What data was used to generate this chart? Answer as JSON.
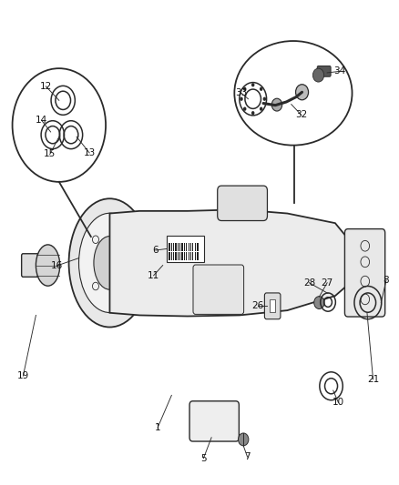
{
  "bg_color": "#ffffff",
  "line_color": "#2a2a2a",
  "label_color": "#111111",
  "label_fontsize": 7.5,
  "labels": [
    [
      1,
      0.395,
      0.118,
      0.43,
      0.185
    ],
    [
      5,
      0.51,
      0.055,
      0.53,
      0.098
    ],
    [
      6,
      0.39,
      0.484,
      0.418,
      0.487
    ],
    [
      7,
      0.62,
      0.058,
      0.61,
      0.081
    ],
    [
      8,
      0.968,
      0.422,
      0.955,
      0.376
    ],
    [
      10,
      0.848,
      0.17,
      0.835,
      0.195
    ],
    [
      11,
      0.385,
      0.432,
      0.408,
      0.453
    ],
    [
      12,
      0.115,
      0.822,
      0.148,
      0.793
    ],
    [
      13,
      0.224,
      0.685,
      0.192,
      0.718
    ],
    [
      14,
      0.104,
      0.752,
      0.127,
      0.728
    ],
    [
      15,
      0.125,
      0.682,
      0.148,
      0.718
    ],
    [
      16,
      0.142,
      0.452,
      0.198,
      0.468
    ],
    [
      19,
      0.058,
      0.225,
      0.09,
      0.35
    ],
    [
      21,
      0.935,
      0.218,
      0.92,
      0.355
    ],
    [
      26,
      0.645,
      0.37,
      0.668,
      0.37
    ],
    [
      27,
      0.82,
      0.417,
      0.8,
      0.388
    ],
    [
      28,
      0.775,
      0.417,
      0.822,
      0.395
    ],
    [
      32,
      0.755,
      0.763,
      0.73,
      0.785
    ],
    [
      33,
      0.605,
      0.808,
      0.622,
      0.796
    ],
    [
      34,
      0.852,
      0.853,
      0.82,
      0.85
    ]
  ]
}
